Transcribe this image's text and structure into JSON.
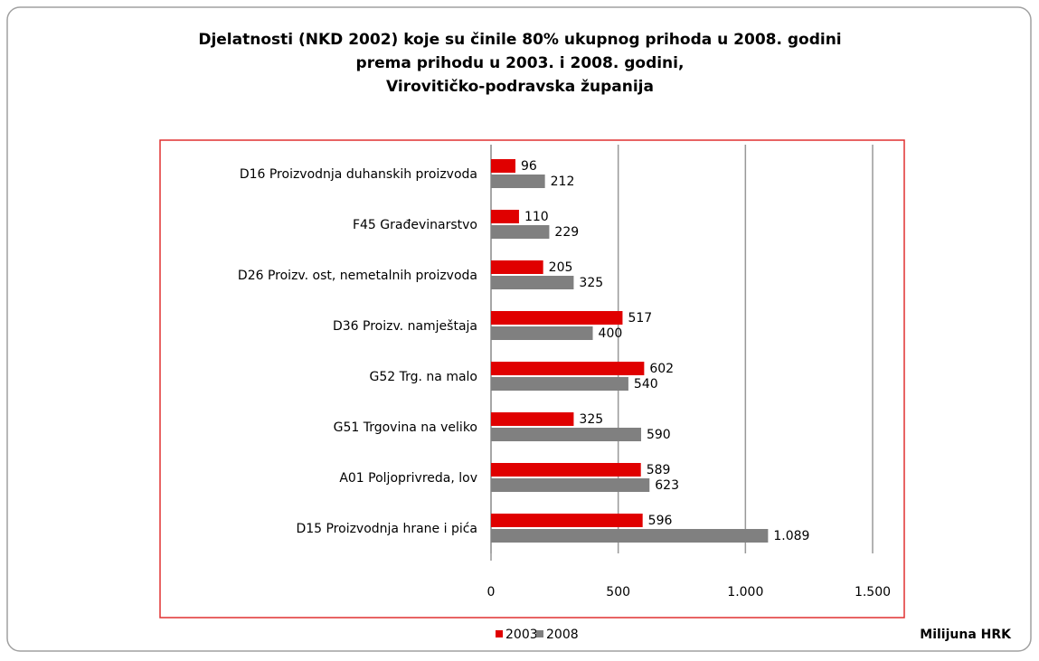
{
  "chart_data": {
    "type": "hbar",
    "title": [
      "Djelatnosti (NKD 2002) koje su činile 80% ukupnog prihoda u 2008. godini",
      "prema prihodu u 2003. i 2008. godini,",
      "Virovitičko-podravska županija"
    ],
    "categories": [
      "D16 Proizvodnja duhanskih proizvoda",
      "F45 Građevinarstvo",
      "D26 Proizv. ost, nemetalnih proizvoda",
      "D36 Proizv. namještaja",
      "G52 Trg. na malo",
      "G51 Trgovina na veliko",
      "A01 Poljoprivreda, lov",
      "D15 Proizvodnja hrane i pića"
    ],
    "series": [
      {
        "name": "2003",
        "color": "#e00000",
        "values": [
          96,
          110,
          205,
          517,
          602,
          325,
          589,
          596
        ]
      },
      {
        "name": "2008",
        "color": "#808080",
        "values": [
          212,
          229,
          325,
          400,
          540,
          590,
          623,
          1089
        ],
        "value_labels": [
          "212",
          "229",
          "325",
          "400",
          "540",
          "590",
          "623",
          "1.089"
        ]
      }
    ],
    "xlim": [
      0,
      1500
    ],
    "xticks": [
      0,
      500,
      {
        "value": 1000,
        "label": "1.000"
      },
      {
        "value": 1500,
        "label": "1.500"
      }
    ],
    "xlabel": "Milijuna HRK",
    "grid": true,
    "legend": "bottom"
  }
}
